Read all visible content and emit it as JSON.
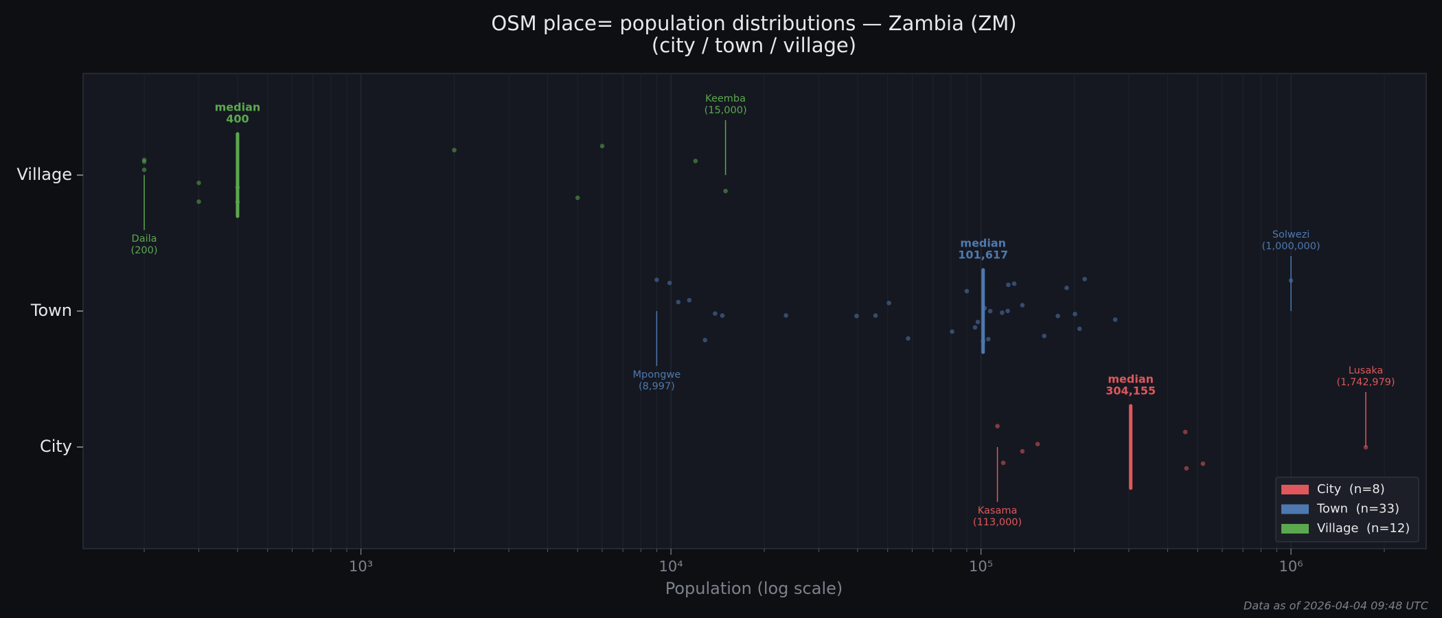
{
  "chart_data": {
    "type": "strip",
    "title": "OSM place= population distributions — Zambia (ZM)",
    "subtitle": "(city / town / village)",
    "x_label": "Population (log scale)",
    "footer": "Data as of 2026-04-04 09:48 UTC",
    "log_x": true,
    "grid": true,
    "legend_position": "lower right",
    "median_text": "median",
    "xlim": [
      127,
      2730000
    ],
    "xticks": [
      {
        "value": 1000,
        "label": "10³"
      },
      {
        "value": 10000,
        "label": "10⁴"
      },
      {
        "value": 100000,
        "label": "10⁵"
      },
      {
        "value": 1000000,
        "label": "10⁶"
      }
    ],
    "xticks_minor": [
      200,
      300,
      400,
      500,
      600,
      700,
      800,
      900,
      2000,
      3000,
      4000,
      5000,
      6000,
      7000,
      8000,
      9000,
      20000,
      30000,
      40000,
      50000,
      60000,
      70000,
      80000,
      90000,
      200000,
      300000,
      400000,
      500000,
      600000,
      700000,
      800000,
      900000,
      2000000
    ],
    "series": [
      {
        "name": "City",
        "legend": "City  (n=8)",
        "color": "#e0575c",
        "values": [
          113000,
          118000,
          136000,
          152310,
          456000,
          460000,
          520000,
          1742979
        ],
        "median": 304155,
        "median_label": "304,155",
        "callouts": [
          {
            "label": "Kasama",
            "value": 113000,
            "value_label": "(113,000)"
          },
          {
            "label": "Lusaka",
            "value": 1742979,
            "value_label": "(1,742,979)"
          }
        ]
      },
      {
        "name": "Town",
        "legend": "Town  (n=33)",
        "color": "#4e79b0",
        "values": [
          8997,
          9900,
          10560,
          11460,
          12880,
          13880,
          14650,
          23500,
          39700,
          45700,
          50500,
          58200,
          80700,
          90000,
          95700,
          97700,
          101617,
          102800,
          105600,
          107100,
          117000,
          122000,
          122500,
          128000,
          136000,
          160000,
          177000,
          189000,
          201000,
          208000,
          216000,
          271000,
          1000000
        ],
        "median": 101617,
        "median_label": "101,617",
        "callouts": [
          {
            "label": "Mpongwe",
            "value": 8997,
            "value_label": "(8,997)"
          },
          {
            "label": "Solwezi",
            "value": 1000000,
            "value_label": "(1,000,000)"
          }
        ]
      },
      {
        "name": "Village",
        "legend": "Village  (n=12)",
        "color": "#5ba84f",
        "values": [
          200,
          200,
          200,
          300,
          300,
          400,
          400,
          2000,
          5000,
          6000,
          12000,
          15000
        ],
        "median": 400,
        "median_label": "400",
        "callouts": [
          {
            "label": "Daila",
            "value": 200,
            "value_label": "(200)"
          },
          {
            "label": "Keemba",
            "value": 15000,
            "value_label": "(15,000)"
          }
        ]
      }
    ]
  }
}
